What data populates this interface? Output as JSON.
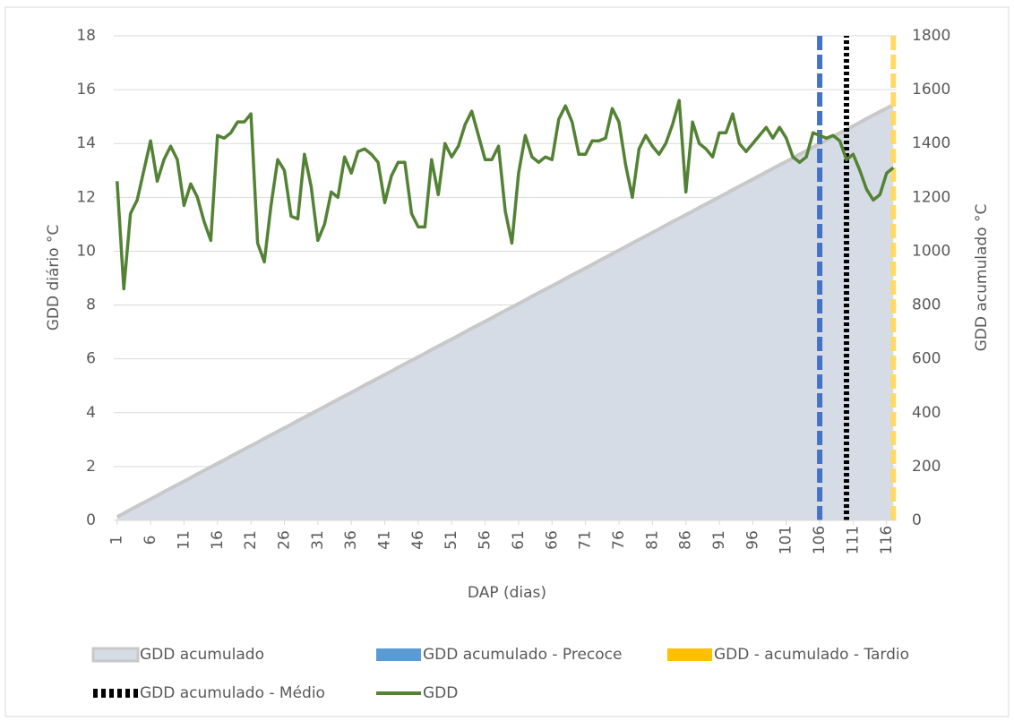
{
  "chart_data": {
    "type": "line",
    "xlabel": "DAP (dias)",
    "ylabel": "GDD diário °C",
    "y2label": "GDD acumulado °C",
    "x": [
      1,
      2,
      3,
      4,
      5,
      6,
      7,
      8,
      9,
      10,
      11,
      12,
      13,
      14,
      15,
      16,
      17,
      18,
      19,
      20,
      21,
      22,
      23,
      24,
      25,
      26,
      27,
      28,
      29,
      30,
      31,
      32,
      33,
      34,
      35,
      36,
      37,
      38,
      39,
      40,
      41,
      42,
      43,
      44,
      45,
      46,
      47,
      48,
      49,
      50,
      51,
      52,
      53,
      54,
      55,
      56,
      57,
      58,
      59,
      60,
      61,
      62,
      63,
      64,
      65,
      66,
      67,
      68,
      69,
      70,
      71,
      72,
      73,
      74,
      75,
      76,
      77,
      78,
      79,
      80,
      81,
      82,
      83,
      84,
      85,
      86,
      87,
      88,
      89,
      90,
      91,
      92,
      93,
      94,
      95,
      96,
      97,
      98,
      99,
      100,
      101,
      102,
      103,
      104,
      105,
      106,
      107,
      108,
      109,
      110,
      111,
      112,
      113,
      114,
      115,
      116,
      117
    ],
    "xlim": [
      0.5,
      117.5
    ],
    "xticks": [
      1,
      6,
      11,
      16,
      21,
      26,
      31,
      36,
      41,
      46,
      51,
      56,
      61,
      66,
      71,
      76,
      81,
      86,
      91,
      96,
      101,
      106,
      111,
      116
    ],
    "ylim": [
      0,
      18
    ],
    "yticks": [
      0,
      2,
      4,
      6,
      8,
      10,
      12,
      14,
      16,
      18
    ],
    "y2lim": [
      0,
      1800
    ],
    "y2ticks": [
      0,
      200,
      400,
      600,
      800,
      1000,
      1200,
      1400,
      1600,
      1800
    ],
    "grid": true,
    "series": [
      {
        "name": "GDD acumulado",
        "style": "area",
        "axis": "y2",
        "color": "#d6dce5",
        "edge": "#c8c8c8",
        "values": [
          13,
          26,
          40,
          53,
          66,
          79,
          92,
          106,
          119,
          132,
          145,
          158,
          172,
          185,
          198,
          211,
          224,
          238,
          251,
          264,
          277,
          290,
          304,
          317,
          330,
          343,
          356,
          370,
          383,
          396,
          409,
          422,
          436,
          449,
          462,
          475,
          488,
          502,
          515,
          528,
          541,
          554,
          568,
          581,
          594,
          607,
          620,
          634,
          647,
          660,
          673,
          686,
          700,
          713,
          726,
          739,
          752,
          766,
          779,
          792,
          805,
          818,
          832,
          845,
          858,
          871,
          884,
          898,
          911,
          924,
          937,
          950,
          964,
          977,
          990,
          1003,
          1016,
          1030,
          1043,
          1056,
          1069,
          1082,
          1096,
          1109,
          1122,
          1135,
          1148,
          1162,
          1175,
          1188,
          1201,
          1214,
          1228,
          1241,
          1254,
          1267,
          1280,
          1294,
          1307,
          1320,
          1333,
          1346,
          1360,
          1373,
          1386,
          1399,
          1412,
          1426,
          1439,
          1452,
          1465,
          1478,
          1492,
          1505,
          1518,
          1531,
          1544
        ]
      },
      {
        "name": "GDD acumulado - Precoce",
        "style": "dashed",
        "axis": "y2",
        "color": "#4472c4",
        "x": [
          106,
          106
        ],
        "values": [
          0,
          1800
        ]
      },
      {
        "name": "GDD - acumulado - Tardio",
        "style": "dashed",
        "axis": "y2",
        "color": "#ffd966",
        "x": [
          117,
          117
        ],
        "values": [
          0,
          1800
        ]
      },
      {
        "name": "GDD acumulado - Médio",
        "style": "dotted",
        "axis": "y2",
        "color": "#000000",
        "x": [
          110,
          110
        ],
        "values": [
          0,
          1800
        ]
      },
      {
        "name": "GDD",
        "style": "solid",
        "axis": "y",
        "color": "#548235",
        "values": [
          12.6,
          8.6,
          11.4,
          11.9,
          13.0,
          14.1,
          12.6,
          13.4,
          13.9,
          13.4,
          11.7,
          12.5,
          12.0,
          11.1,
          10.4,
          14.3,
          14.2,
          14.4,
          14.8,
          14.8,
          15.1,
          10.3,
          9.6,
          11.7,
          13.4,
          13.0,
          11.3,
          11.2,
          13.6,
          12.4,
          10.4,
          11.0,
          12.2,
          12.0,
          13.5,
          12.9,
          13.7,
          13.8,
          13.6,
          13.3,
          11.8,
          12.8,
          13.3,
          13.3,
          11.4,
          10.9,
          10.9,
          13.4,
          12.1,
          14.0,
          13.5,
          13.9,
          14.7,
          15.2,
          14.3,
          13.4,
          13.4,
          13.9,
          11.5,
          10.3,
          12.9,
          14.3,
          13.5,
          13.3,
          13.5,
          13.4,
          14.9,
          15.4,
          14.8,
          13.6,
          13.6,
          14.1,
          14.1,
          14.2,
          15.3,
          14.8,
          13.2,
          12.0,
          13.8,
          14.3,
          13.9,
          13.6,
          14.0,
          14.7,
          15.6,
          12.2,
          14.8,
          14.0,
          13.8,
          13.5,
          14.4,
          14.4,
          15.1,
          14.0,
          13.7,
          14.0,
          14.3,
          14.6,
          14.2,
          14.6,
          14.2,
          13.5,
          13.3,
          13.5,
          14.4,
          14.3,
          14.2,
          14.3,
          14.1,
          13.4,
          13.6,
          13.0,
          12.3,
          11.9,
          12.1,
          12.9,
          13.1
        ]
      }
    ]
  }
}
